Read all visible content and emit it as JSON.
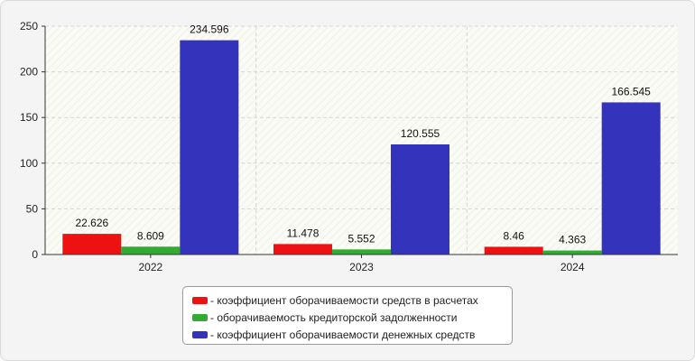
{
  "chart_data": {
    "type": "bar",
    "categories": [
      "2022",
      "2023",
      "2024"
    ],
    "series": [
      {
        "name": "- коэффициент оборачиваемости средств в расчетах",
        "color": "#ee1111",
        "values": [
          22.626,
          11.478,
          8.46
        ],
        "labels": [
          "22.626",
          "11.478",
          "8.46"
        ]
      },
      {
        "name": "- оборачиваемость кредиторской задолженности",
        "color": "#33aa33",
        "values": [
          8.609,
          5.552,
          4.363
        ],
        "labels": [
          "8.609",
          "5.552",
          "4.363"
        ]
      },
      {
        "name": "- коэффициент оборачиваемости денежных средств",
        "color": "#3333bb",
        "values": [
          234.596,
          120.555,
          166.545
        ],
        "labels": [
          "234.596",
          "120.555",
          "166.545"
        ]
      }
    ],
    "yticks": [
      "0",
      "50",
      "100",
      "150",
      "200",
      "250"
    ],
    "ylim": [
      0,
      250
    ],
    "grid": true,
    "legend_position": "bottom"
  }
}
